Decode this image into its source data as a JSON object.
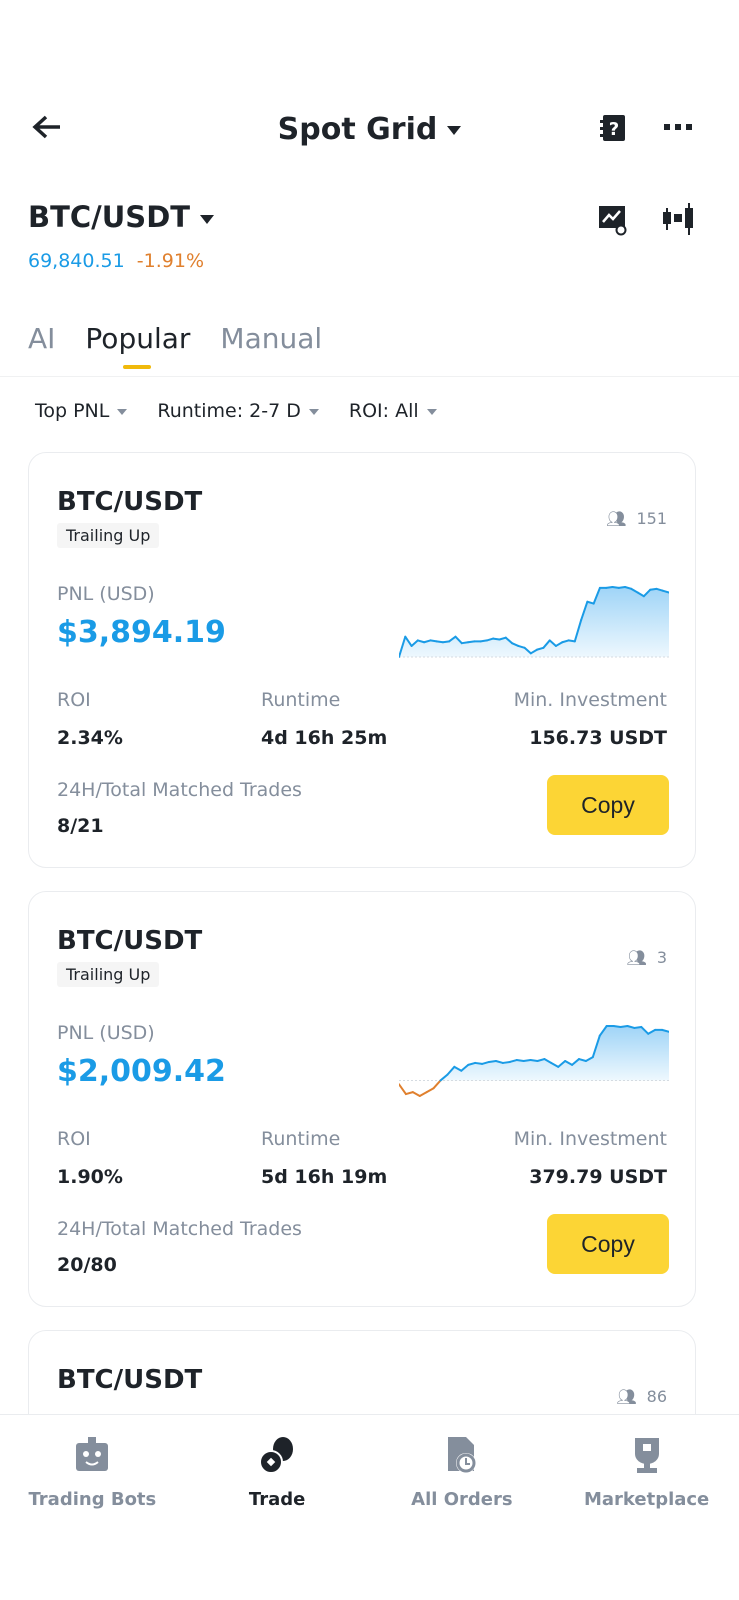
{
  "header": {
    "title": "Spot Grid",
    "icons": [
      "back-arrow-icon",
      "help-book-icon",
      "more-icon"
    ]
  },
  "pair": {
    "symbol": "BTC/USDT",
    "price": "69,840.51",
    "change": "-1.91%",
    "price_color": "#1a9be6",
    "change_color": "#e0802e"
  },
  "tabs": [
    {
      "label": "AI"
    },
    {
      "label": "Popular",
      "active": true
    },
    {
      "label": "Manual"
    }
  ],
  "filters": [
    {
      "label": "Top PNL"
    },
    {
      "label": "Runtime: 2-7 D"
    },
    {
      "label": "ROI: All"
    }
  ],
  "labels": {
    "pnl": "PNL (USD)",
    "roi": "ROI",
    "runtime": "Runtime",
    "min_inv": "Min. Investment",
    "trades": "24H/Total Matched Trades",
    "copy": "Copy"
  },
  "cards": [
    {
      "pair": "BTC/USDT",
      "tag": "Trailing Up",
      "copiers": "151",
      "pnl": "$3,894.19",
      "roi": "2.34%",
      "runtime": "4d 16h 25m",
      "min_investment": "156.73 USDT",
      "trades": "8/21",
      "sparkline": [
        0,
        22,
        12,
        18,
        16,
        18,
        17,
        16,
        17,
        22,
        15,
        16,
        17,
        17,
        18,
        20,
        19,
        21,
        15,
        12,
        10,
        4,
        8,
        10,
        18,
        12,
        16,
        18,
        17,
        40,
        60,
        58,
        75,
        75,
        76,
        75,
        76,
        74,
        70,
        66,
        73,
        74,
        72,
        70
      ]
    },
    {
      "pair": "BTC/USDT",
      "tag": "Trailing Up",
      "copiers": "3",
      "pnl": "$2,009.42",
      "roi": "1.90%",
      "runtime": "5d 16h 19m",
      "min_investment": "379.79 USDT",
      "trades": "20/80",
      "sparkline": [
        -4,
        -14,
        -12,
        -16,
        -12,
        -8,
        0,
        6,
        14,
        10,
        16,
        18,
        17,
        19,
        20,
        18,
        19,
        21,
        20,
        21,
        20,
        22,
        18,
        14,
        20,
        16,
        22,
        20,
        24,
        46,
        56,
        56,
        55,
        56,
        54,
        55,
        48,
        52,
        52,
        50
      ]
    },
    {
      "pair": "BTC/USDT",
      "copiers": "86"
    }
  ],
  "nav": [
    {
      "label": "Trading Bots",
      "icon": "robot-icon"
    },
    {
      "label": "Trade",
      "icon": "coins-icon",
      "active": true
    },
    {
      "label": "All Orders",
      "icon": "orders-clock-icon"
    },
    {
      "label": "Marketplace",
      "icon": "trophy-icon"
    }
  ]
}
